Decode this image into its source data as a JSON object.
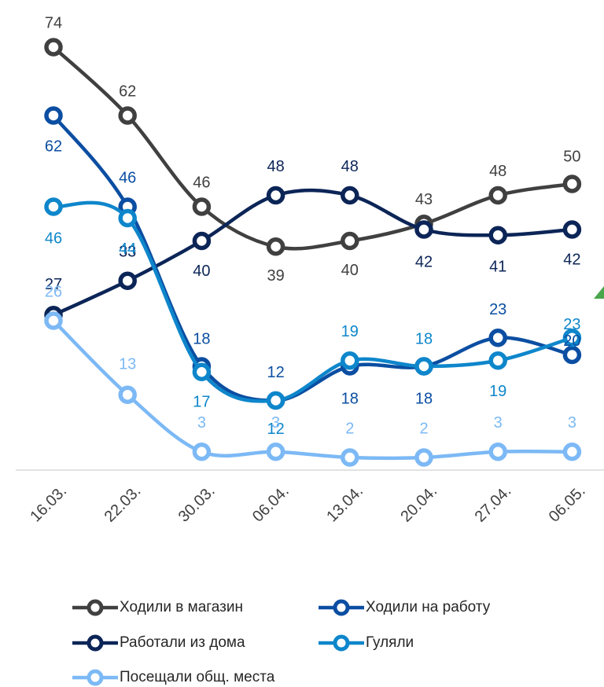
{
  "chart_data": {
    "type": "line",
    "categories": [
      "16.03.",
      "22.03.",
      "30.03.",
      "06.04.",
      "13.04.",
      "20.04.",
      "27.04.",
      "06.05."
    ],
    "ylim": [
      0,
      82
    ],
    "series": [
      {
        "name": "Ходили в магазин",
        "color": "#404040",
        "values": [
          74,
          62,
          46,
          39,
          40,
          43,
          48,
          50
        ]
      },
      {
        "name": "Ходили на работу",
        "color": "#0b4ea2",
        "values": [
          62,
          46,
          18,
          12,
          18,
          18,
          23,
          20
        ]
      },
      {
        "name": "Работали из дома",
        "color": "#0c2557",
        "values": [
          27,
          33,
          40,
          48,
          48,
          42,
          41,
          42
        ]
      },
      {
        "name": "Гуляли",
        "color": "#0e86cb",
        "values": [
          46,
          44,
          17,
          12,
          19,
          18,
          19,
          23
        ]
      },
      {
        "name": "Посещали общ. места",
        "color": "#7cb9f5",
        "values": [
          26,
          13,
          3,
          3,
          2,
          2,
          3,
          3
        ]
      }
    ]
  }
}
